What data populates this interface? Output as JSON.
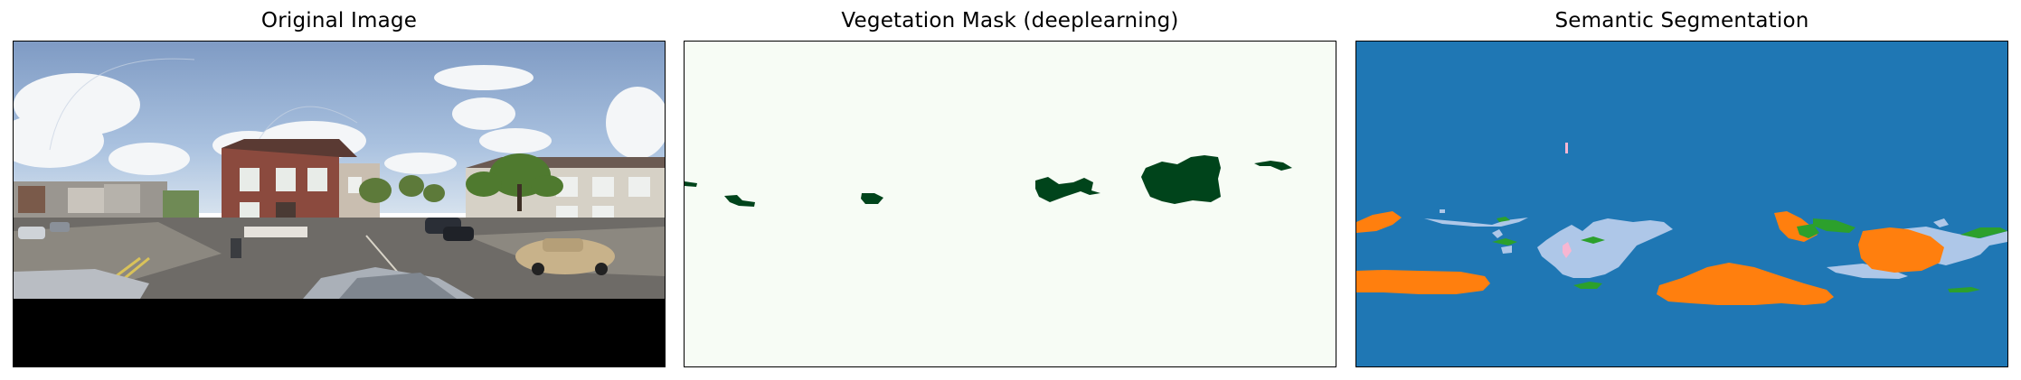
{
  "panels": [
    {
      "title": "Original Image"
    },
    {
      "title": "Vegetation Mask (deeplearning)"
    },
    {
      "title": "Semantic Segmentation"
    }
  ],
  "colors": {
    "mask_background": "#f7fcf5",
    "mask_vegetation": "#00441b",
    "seg_sky": "#1f77b4",
    "seg_light": "#aec7e8",
    "seg_orange": "#ff7f0e",
    "seg_green": "#2ca02c",
    "seg_pink": "#f7b6d2"
  }
}
